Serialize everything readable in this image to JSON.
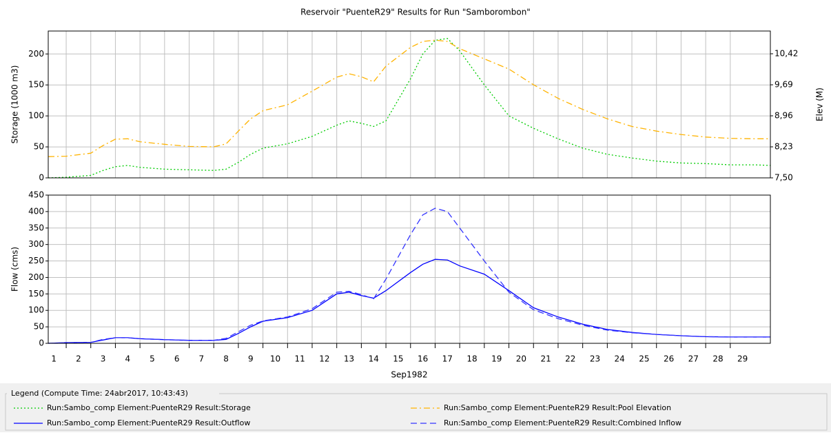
{
  "chart_data": [
    {
      "type": "line",
      "title": "Reservoir \"PuenteR29\" Results for Run \"Samborombon\"",
      "ylabel": "Storage (1000 m3)",
      "y2label": "Elev (M)",
      "x": [
        1.27,
        2,
        3,
        3.5,
        4,
        4.5,
        5,
        6,
        7,
        8,
        8.5,
        9,
        9.5,
        10,
        11,
        12,
        13,
        13.5,
        14,
        14.5,
        15,
        16,
        16.5,
        17,
        17.5,
        18,
        19,
        20,
        21,
        22,
        23,
        24,
        25,
        26,
        27,
        28,
        29,
        30,
        30.63
      ],
      "xlim": [
        1.27,
        30.63
      ],
      "ylim": [
        0,
        237
      ],
      "yticks": [
        0,
        50,
        100,
        150,
        200
      ],
      "y2lim": [
        7.5,
        10.955
      ],
      "y2ticks": [
        {
          "value": 7.5,
          "label": "7,50"
        },
        {
          "value": 8.23,
          "label": "8,23"
        },
        {
          "value": 8.96,
          "label": "8,96"
        },
        {
          "value": 9.69,
          "label": "9,69"
        },
        {
          "value": 10.42,
          "label": "10,42"
        }
      ],
      "grid": true,
      "series": [
        {
          "name": "Run:Sambo_comp Element:PuenteR29 Result:Storage",
          "color": "#00cc00",
          "dash": "dotted",
          "values": [
            0,
            1,
            4,
            12,
            18,
            20,
            17,
            14,
            13,
            12,
            14,
            25,
            38,
            48,
            55,
            67,
            85,
            92,
            88,
            83,
            92,
            160,
            200,
            222,
            225,
            205,
            150,
            100,
            80,
            63,
            48,
            38,
            32,
            27,
            24,
            23,
            21,
            21,
            20
          ]
        },
        {
          "name": "Run:Sambo_comp Element:PuenteR29 Result:Pool Elevation",
          "color": "#ffb300",
          "dash": "dashdot",
          "axis": "y2",
          "values": [
            8.0,
            8.01,
            8.08,
            8.26,
            8.41,
            8.42,
            8.35,
            8.29,
            8.24,
            8.23,
            8.3,
            8.6,
            8.89,
            9.08,
            9.22,
            9.54,
            9.87,
            9.95,
            9.88,
            9.76,
            10.13,
            10.57,
            10.71,
            10.74,
            10.71,
            10.54,
            10.3,
            10.06,
            9.69,
            9.37,
            9.11,
            8.89,
            8.71,
            8.6,
            8.52,
            8.46,
            8.43,
            8.42,
            8.42
          ]
        }
      ]
    },
    {
      "type": "line",
      "ylabel": "Flow (cms)",
      "xlabel": "Sep1982",
      "x": [
        1.27,
        2,
        3,
        3.5,
        4,
        4.5,
        5,
        6,
        7,
        8,
        8.5,
        9,
        9.5,
        10,
        11,
        12,
        13,
        13.5,
        14,
        14.5,
        15,
        16,
        16.5,
        17,
        17.5,
        18,
        19,
        20,
        21,
        22,
        23,
        24,
        25,
        26,
        27,
        28,
        29,
        30,
        30.63
      ],
      "xlim": [
        1.27,
        30.63
      ],
      "xticks": [
        1,
        2,
        3,
        4,
        5,
        6,
        7,
        8,
        9,
        10,
        11,
        12,
        13,
        14,
        15,
        16,
        17,
        18,
        19,
        20,
        21,
        22,
        23,
        24,
        25,
        26,
        27,
        28,
        29
      ],
      "ylim": [
        0,
        450
      ],
      "yticks": [
        0,
        50,
        100,
        150,
        200,
        250,
        300,
        350,
        400,
        450
      ],
      "grid": true,
      "series": [
        {
          "name": "Run:Sambo_comp Element:PuenteR29 Result:Outflow",
          "color": "#0000ff",
          "dash": "solid",
          "values": [
            0,
            2,
            3,
            10,
            17,
            17,
            14,
            11,
            9,
            9,
            12,
            30,
            50,
            67,
            78,
            100,
            150,
            155,
            145,
            137,
            160,
            215,
            240,
            255,
            253,
            235,
            210,
            160,
            108,
            80,
            58,
            42,
            33,
            27,
            23,
            20,
            19,
            19,
            19
          ]
        },
        {
          "name": "Run:Sambo_comp Element:PuenteR29 Result:Combined Inflow",
          "color": "#3333ff",
          "dash": "dashed",
          "values": [
            0,
            2,
            3,
            12,
            17,
            17,
            14,
            11,
            9,
            9,
            15,
            35,
            55,
            68,
            80,
            105,
            155,
            158,
            148,
            135,
            195,
            330,
            390,
            410,
            400,
            350,
            250,
            155,
            102,
            75,
            55,
            40,
            32,
            27,
            23,
            20,
            19,
            19,
            19
          ]
        }
      ]
    }
  ],
  "legend": {
    "title": "Legend (Compute Time: 24abr2017, 10:43:43)"
  }
}
